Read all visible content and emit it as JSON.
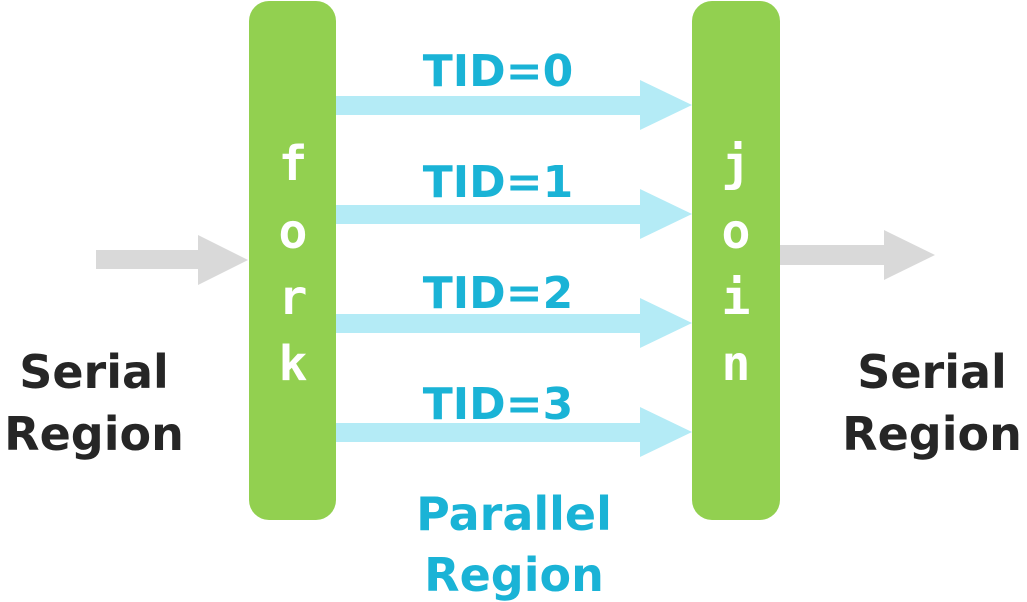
{
  "colors": {
    "bar_green": "#92d050",
    "thread_arrow": "#b4ebf6",
    "thread_text": "#1ab3d6",
    "serial_arrow": "#d9d9d9",
    "serial_text": "#262626",
    "bar_text": "#ffffff"
  },
  "fork": {
    "letters": [
      "f",
      "o",
      "r",
      "k"
    ]
  },
  "join": {
    "letters": [
      "j",
      "o",
      "i",
      "n"
    ]
  },
  "threads": [
    "TID=0",
    "TID=1",
    "TID=2",
    "TID=3"
  ],
  "serial_left": {
    "line1": "Serial",
    "line2": "Region"
  },
  "serial_right": {
    "line1": "Serial",
    "line2": "Region"
  },
  "parallel": {
    "line1": "Parallel",
    "line2": "Region"
  }
}
